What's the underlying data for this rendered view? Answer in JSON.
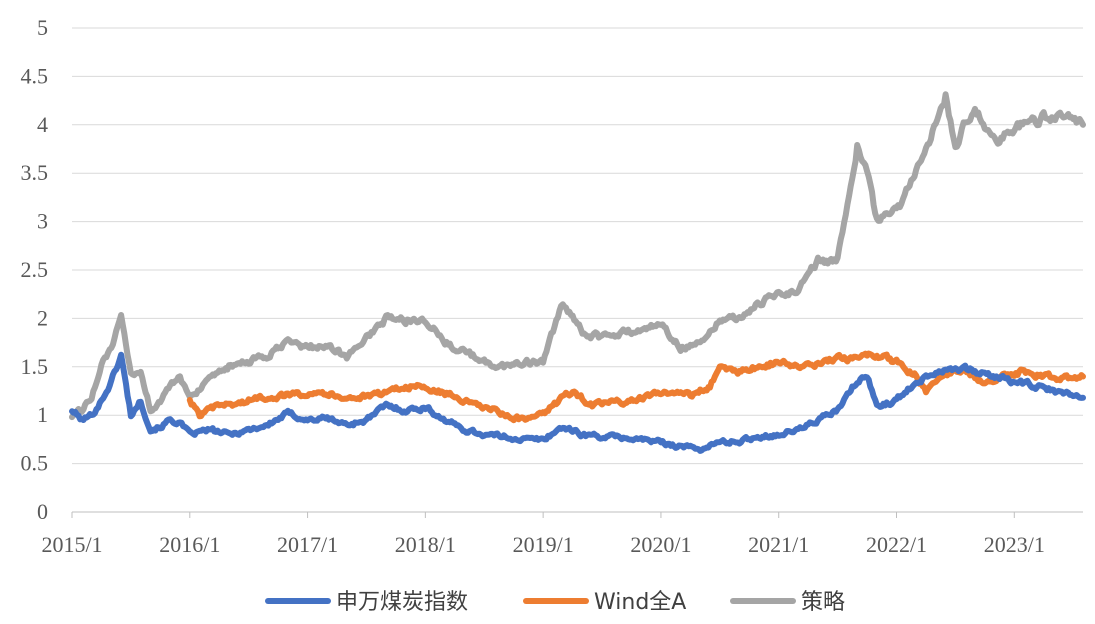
{
  "chart_data": {
    "type": "line",
    "title": "",
    "xlabel": "",
    "ylabel": "",
    "ylim": [
      0,
      5
    ],
    "yticks": [
      "0",
      "0.5",
      "1",
      "1.5",
      "2",
      "2.5",
      "3",
      "3.5",
      "4",
      "4.5",
      "5"
    ],
    "xticks": [
      "2015/1",
      "2016/1",
      "2017/1",
      "2018/1",
      "2019/1",
      "2020/1",
      "2021/1",
      "2022/1",
      "2023/1"
    ],
    "x_range": [
      "2015-01",
      "2023-08"
    ],
    "grid": "horizontal",
    "legend_position": "bottom",
    "series": [
      {
        "name": "申万煤炭指数",
        "color": "#4472C4",
        "points": [
          [
            "2015-01",
            1.05
          ],
          [
            "2015-02",
            0.95
          ],
          [
            "2015-03",
            1.0
          ],
          [
            "2015-04",
            1.15
          ],
          [
            "2015-05",
            1.35
          ],
          [
            "2015-06",
            1.62
          ],
          [
            "2015-07",
            1.0
          ],
          [
            "2015-08",
            1.15
          ],
          [
            "2015-09",
            0.85
          ],
          [
            "2015-10",
            0.88
          ],
          [
            "2015-11",
            0.95
          ],
          [
            "2015-12",
            0.92
          ],
          [
            "2016-01",
            0.8
          ],
          [
            "2016-03",
            0.85
          ],
          [
            "2016-05",
            0.8
          ],
          [
            "2016-07",
            0.85
          ],
          [
            "2016-09",
            0.9
          ],
          [
            "2016-11",
            1.02
          ],
          [
            "2017-01",
            0.95
          ],
          [
            "2017-03",
            0.97
          ],
          [
            "2017-05",
            0.9
          ],
          [
            "2017-07",
            0.95
          ],
          [
            "2017-09",
            1.1
          ],
          [
            "2017-11",
            1.05
          ],
          [
            "2018-01",
            1.08
          ],
          [
            "2018-03",
            0.95
          ],
          [
            "2018-05",
            0.85
          ],
          [
            "2018-07",
            0.8
          ],
          [
            "2018-09",
            0.78
          ],
          [
            "2018-11",
            0.75
          ],
          [
            "2019-01",
            0.75
          ],
          [
            "2019-03",
            0.88
          ],
          [
            "2019-05",
            0.8
          ],
          [
            "2019-07",
            0.78
          ],
          [
            "2019-09",
            0.77
          ],
          [
            "2019-11",
            0.75
          ],
          [
            "2020-01",
            0.72
          ],
          [
            "2020-03",
            0.68
          ],
          [
            "2020-05",
            0.65
          ],
          [
            "2020-07",
            0.72
          ],
          [
            "2020-09",
            0.73
          ],
          [
            "2020-11",
            0.78
          ],
          [
            "2021-01",
            0.8
          ],
          [
            "2021-03",
            0.85
          ],
          [
            "2021-05",
            0.95
          ],
          [
            "2021-07",
            1.05
          ],
          [
            "2021-09",
            1.35
          ],
          [
            "2021-10",
            1.4
          ],
          [
            "2021-11",
            1.1
          ],
          [
            "2022-01",
            1.15
          ],
          [
            "2022-03",
            1.35
          ],
          [
            "2022-05",
            1.45
          ],
          [
            "2022-07",
            1.5
          ],
          [
            "2022-09",
            1.45
          ],
          [
            "2022-11",
            1.4
          ],
          [
            "2023-01",
            1.35
          ],
          [
            "2023-03",
            1.3
          ],
          [
            "2023-05",
            1.25
          ],
          [
            "2023-08",
            1.18
          ]
        ]
      },
      {
        "name": "Wind全A",
        "color": "#ED7D31",
        "points": [
          [
            "2016-01",
            1.15
          ],
          [
            "2016-02",
            1.0
          ],
          [
            "2016-04",
            1.1
          ],
          [
            "2016-06",
            1.12
          ],
          [
            "2016-08",
            1.18
          ],
          [
            "2016-10",
            1.2
          ],
          [
            "2016-12",
            1.22
          ],
          [
            "2017-02",
            1.25
          ],
          [
            "2017-04",
            1.2
          ],
          [
            "2017-06",
            1.18
          ],
          [
            "2017-08",
            1.2
          ],
          [
            "2017-10",
            1.28
          ],
          [
            "2017-12",
            1.3
          ],
          [
            "2018-02",
            1.25
          ],
          [
            "2018-04",
            1.2
          ],
          [
            "2018-06",
            1.1
          ],
          [
            "2018-08",
            1.05
          ],
          [
            "2018-10",
            0.97
          ],
          [
            "2018-12",
            0.95
          ],
          [
            "2019-02",
            1.1
          ],
          [
            "2019-04",
            1.25
          ],
          [
            "2019-06",
            1.1
          ],
          [
            "2019-08",
            1.13
          ],
          [
            "2019-10",
            1.15
          ],
          [
            "2019-12",
            1.2
          ],
          [
            "2020-02",
            1.25
          ],
          [
            "2020-04",
            1.2
          ],
          [
            "2020-06",
            1.3
          ],
          [
            "2020-07",
            1.5
          ],
          [
            "2020-09",
            1.45
          ],
          [
            "2020-11",
            1.5
          ],
          [
            "2021-01",
            1.55
          ],
          [
            "2021-03",
            1.5
          ],
          [
            "2021-05",
            1.52
          ],
          [
            "2021-07",
            1.58
          ],
          [
            "2021-09",
            1.6
          ],
          [
            "2021-11",
            1.62
          ],
          [
            "2022-01",
            1.55
          ],
          [
            "2022-03",
            1.4
          ],
          [
            "2022-04",
            1.25
          ],
          [
            "2022-06",
            1.45
          ],
          [
            "2022-08",
            1.45
          ],
          [
            "2022-10",
            1.35
          ],
          [
            "2022-12",
            1.4
          ],
          [
            "2023-02",
            1.45
          ],
          [
            "2023-04",
            1.4
          ],
          [
            "2023-06",
            1.38
          ],
          [
            "2023-08",
            1.4
          ]
        ]
      },
      {
        "name": "策略",
        "color": "#A5A5A5",
        "points": [
          [
            "2015-01",
            1.0
          ],
          [
            "2015-02",
            1.05
          ],
          [
            "2015-03",
            1.2
          ],
          [
            "2015-04",
            1.5
          ],
          [
            "2015-05",
            1.7
          ],
          [
            "2015-06",
            2.0
          ],
          [
            "2015-07",
            1.4
          ],
          [
            "2015-08",
            1.45
          ],
          [
            "2015-09",
            1.05
          ],
          [
            "2015-10",
            1.15
          ],
          [
            "2015-11",
            1.3
          ],
          [
            "2015-12",
            1.38
          ],
          [
            "2016-01",
            1.2
          ],
          [
            "2016-03",
            1.35
          ],
          [
            "2016-05",
            1.5
          ],
          [
            "2016-07",
            1.55
          ],
          [
            "2016-09",
            1.62
          ],
          [
            "2016-11",
            1.75
          ],
          [
            "2017-01",
            1.7
          ],
          [
            "2017-03",
            1.72
          ],
          [
            "2017-05",
            1.6
          ],
          [
            "2017-07",
            1.8
          ],
          [
            "2017-09",
            2.0
          ],
          [
            "2017-11",
            1.98
          ],
          [
            "2018-01",
            2.0
          ],
          [
            "2018-03",
            1.75
          ],
          [
            "2018-05",
            1.65
          ],
          [
            "2018-07",
            1.55
          ],
          [
            "2018-09",
            1.5
          ],
          [
            "2018-11",
            1.55
          ],
          [
            "2019-01",
            1.55
          ],
          [
            "2019-03",
            2.15
          ],
          [
            "2019-05",
            1.85
          ],
          [
            "2019-07",
            1.8
          ],
          [
            "2019-09",
            1.85
          ],
          [
            "2019-11",
            1.88
          ],
          [
            "2020-01",
            1.95
          ],
          [
            "2020-03",
            1.7
          ],
          [
            "2020-05",
            1.75
          ],
          [
            "2020-07",
            2.0
          ],
          [
            "2020-09",
            2.0
          ],
          [
            "2020-11",
            2.15
          ],
          [
            "2021-01",
            2.25
          ],
          [
            "2021-03",
            2.3
          ],
          [
            "2021-05",
            2.6
          ],
          [
            "2021-07",
            2.6
          ],
          [
            "2021-09",
            3.8
          ],
          [
            "2021-10",
            3.5
          ],
          [
            "2021-11",
            3.0
          ],
          [
            "2022-01",
            3.1
          ],
          [
            "2022-02",
            3.3
          ],
          [
            "2022-04",
            3.7
          ],
          [
            "2022-06",
            4.3
          ],
          [
            "2022-07",
            3.8
          ],
          [
            "2022-09",
            4.2
          ],
          [
            "2022-11",
            3.8
          ],
          [
            "2023-01",
            3.95
          ],
          [
            "2023-03",
            4.05
          ],
          [
            "2023-05",
            4.1
          ],
          [
            "2023-08",
            4.0
          ]
        ]
      }
    ]
  }
}
